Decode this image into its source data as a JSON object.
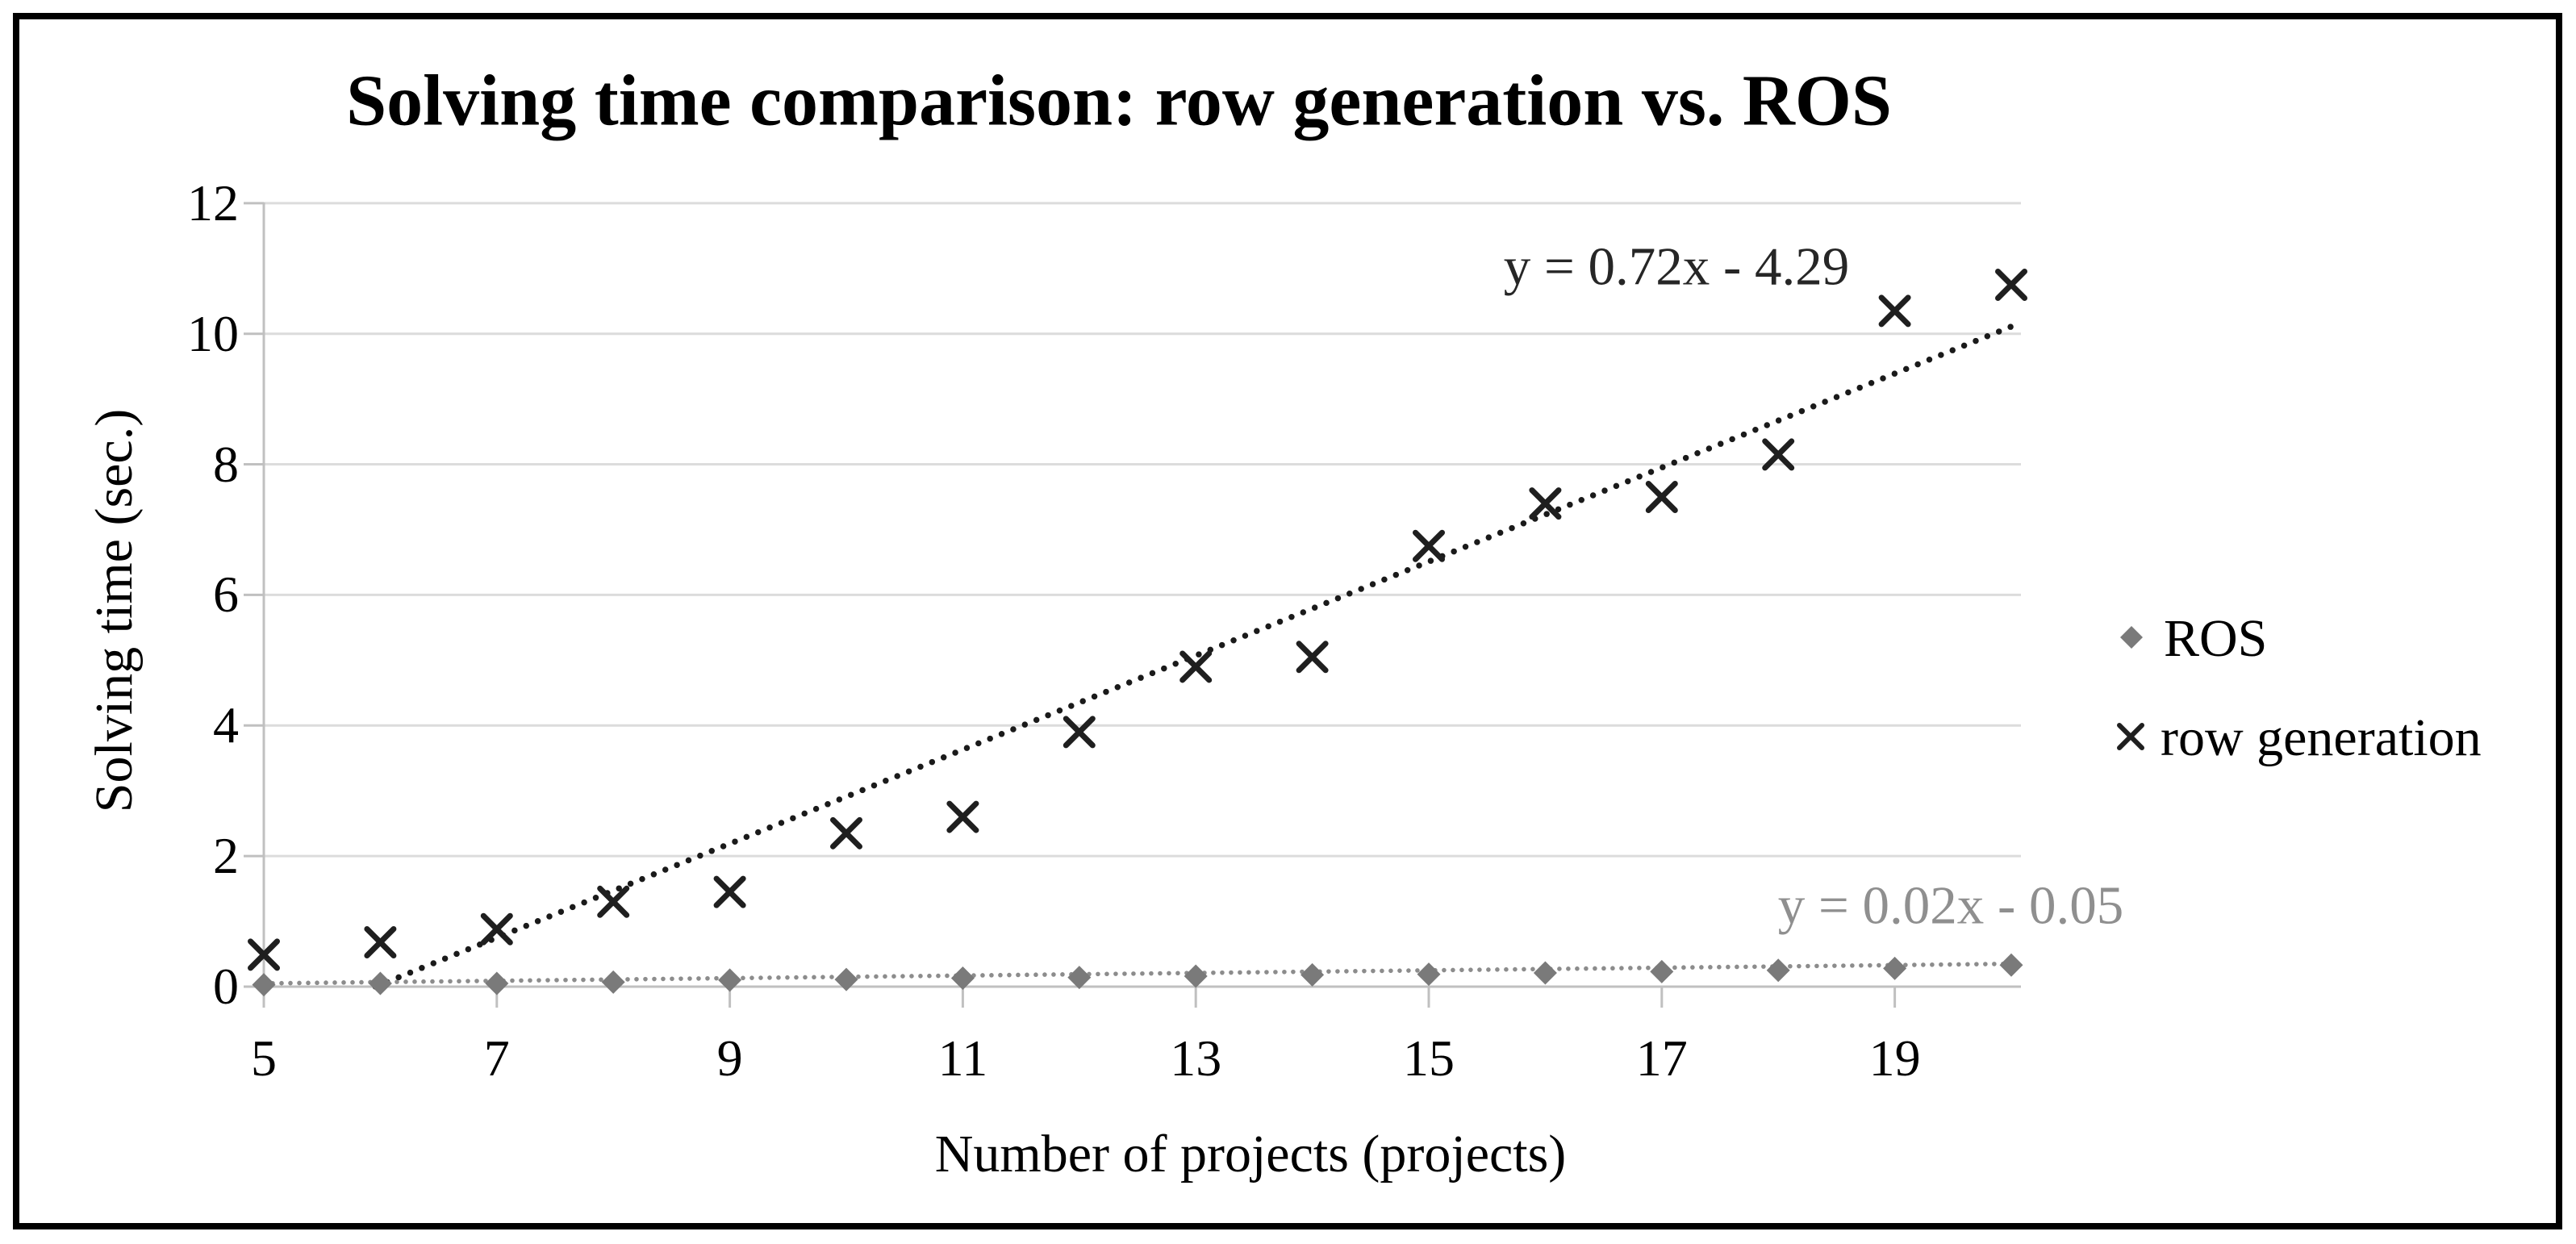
{
  "chart_data": {
    "type": "scatter",
    "title": "Solving time comparison: row generation vs. ROS",
    "xlabel": "Number of projects (projects)",
    "ylabel": "Solving time (sec.)",
    "xlim": [
      5,
      20.1
    ],
    "ylim": [
      0,
      12
    ],
    "x_ticks": [
      5,
      7,
      9,
      11,
      13,
      15,
      17,
      19
    ],
    "y_ticks": [
      0,
      2,
      4,
      6,
      8,
      10,
      12
    ],
    "grid": "horizontal",
    "legend_position": "right",
    "x": [
      5,
      6,
      7,
      8,
      9,
      10,
      11,
      12,
      13,
      14,
      15,
      16,
      17,
      18,
      19,
      20
    ],
    "series": [
      {
        "name": "ROS",
        "marker": "diamond",
        "color": "#7a7a7a",
        "values": [
          0.03,
          0.05,
          0.05,
          0.07,
          0.1,
          0.11,
          0.13,
          0.14,
          0.16,
          0.18,
          0.19,
          0.21,
          0.23,
          0.25,
          0.28,
          0.33
        ],
        "trendline": {
          "equation": "y = 0.02x - 0.05",
          "slope": 0.02,
          "intercept": -0.05,
          "style": "dotted",
          "color": "#8c8c8c"
        }
      },
      {
        "name": "row generation",
        "marker": "x",
        "color": "#1f1f1f",
        "values": [
          0.49,
          0.68,
          0.88,
          1.3,
          1.45,
          2.35,
          2.6,
          3.9,
          4.9,
          5.05,
          6.75,
          7.4,
          7.5,
          8.15,
          10.35,
          10.75
        ],
        "trendline": {
          "equation": "y = 0.72x - 4.29",
          "slope": 0.72,
          "intercept": -4.29,
          "style": "dotted",
          "color": "#1a1a1a"
        }
      }
    ]
  },
  "colors": {
    "gridline": "#dcdcdc",
    "axis": "#c0c0c0",
    "frame_border": "#000000",
    "title_text": "#000000",
    "equation_black": "#262626",
    "equation_gray": "#8f8f8f",
    "legend_text": "#000000"
  }
}
